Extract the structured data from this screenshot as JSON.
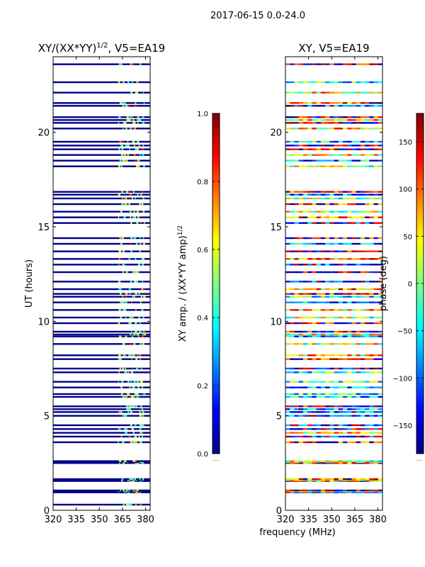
{
  "suptitle": "2017-06-15 0.0-24.0",
  "shared_xlabel": "frequency (MHz)",
  "colormap_colors": [
    "#00007f",
    "#0000ff",
    "#0080ff",
    "#00ffff",
    "#7fff7f",
    "#ffff00",
    "#ff8000",
    "#ff0000",
    "#7f0000"
  ],
  "chart_data": [
    {
      "type": "heatmap",
      "name": "amplitude-ratio-panel",
      "title_main": "XY/(XX*YY)",
      "title_sup": "1/2",
      "title_rest": ", V5=EA19",
      "xlabel": "",
      "ylabel": "UT (hours)",
      "xlim": [
        320,
        383
      ],
      "ylim": [
        0,
        24
      ],
      "xticks": [
        320,
        335,
        350,
        365,
        380
      ],
      "yticks": [
        0,
        5,
        10,
        15,
        20
      ],
      "bright_band_mhz": [
        362,
        379
      ],
      "colorbar": {
        "label_main": "XY amp. / (XX*YY amp)",
        "label_sup": "1/2",
        "range": [
          0.0,
          1.0
        ],
        "ticks": [
          "0.0",
          "0.2",
          "0.4",
          "0.6",
          "0.8",
          "1.0"
        ],
        "tick_values": [
          0.0,
          0.2,
          0.4,
          0.6,
          0.8,
          1.0
        ],
        "below_label": "....."
      },
      "rows_ut": [
        0.3,
        0.95,
        1.0,
        1.05,
        1.55,
        1.6,
        1.65,
        2.5,
        2.55,
        2.6,
        3.6,
        3.9,
        4.1,
        4.3,
        4.5,
        5.0,
        5.2,
        5.35,
        5.5,
        6.0,
        6.15,
        6.5,
        6.8,
        7.3,
        7.5,
        8.0,
        8.2,
        8.8,
        9.2,
        9.3,
        9.45,
        9.9,
        10.2,
        10.6,
        11.0,
        11.3,
        11.45,
        11.7,
        12.1,
        12.6,
        13.0,
        13.3,
        13.7,
        14.1,
        14.4,
        15.2,
        15.5,
        15.8,
        16.2,
        16.5,
        16.7,
        16.85,
        18.2,
        18.5,
        18.8,
        19.1,
        19.3,
        19.5,
        20.2,
        20.5,
        20.65,
        20.8,
        21.4,
        21.55,
        22.1,
        22.65,
        23.6
      ]
    },
    {
      "type": "heatmap",
      "name": "phase-panel",
      "title_main": "XY, V5=EA19",
      "xlabel": "frequency (MHz)",
      "ylabel": "",
      "xlim": [
        320,
        383
      ],
      "ylim": [
        0,
        24
      ],
      "xticks": [
        320,
        335,
        350,
        365,
        380
      ],
      "yticks": [
        0,
        5,
        10,
        15,
        20
      ],
      "colorbar": {
        "label_main": "phase (deg)",
        "range": [
          -180,
          180
        ],
        "ticks": [
          "−150",
          "−100",
          "−50",
          "0",
          "50",
          "100",
          "150"
        ],
        "tick_values": [
          -150,
          -100,
          -50,
          0,
          50,
          100,
          150
        ],
        "below_label": "....."
      },
      "rows_ut": [
        0.95,
        1.0,
        1.05,
        1.55,
        1.6,
        1.65,
        2.5,
        2.55,
        2.6,
        3.6,
        3.9,
        4.1,
        4.3,
        4.5,
        5.0,
        5.2,
        5.35,
        5.5,
        6.0,
        6.15,
        6.5,
        6.8,
        7.3,
        7.5,
        8.0,
        8.2,
        8.8,
        9.2,
        9.3,
        9.45,
        9.9,
        10.2,
        10.6,
        11.0,
        11.3,
        11.45,
        11.7,
        12.1,
        12.6,
        13.0,
        13.3,
        13.7,
        14.1,
        14.4,
        15.2,
        15.5,
        15.8,
        16.2,
        16.5,
        16.7,
        16.85,
        18.2,
        18.5,
        18.8,
        19.1,
        19.3,
        19.5,
        20.2,
        20.5,
        20.65,
        20.8,
        21.4,
        21.55,
        22.1,
        22.65,
        23.6
      ]
    }
  ]
}
